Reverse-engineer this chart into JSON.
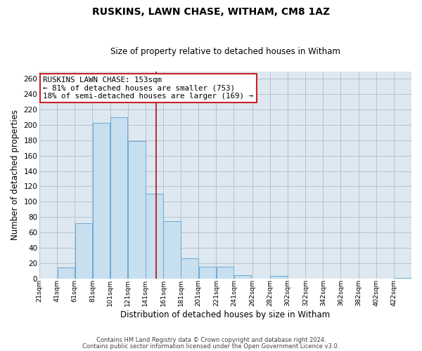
{
  "title": "RUSKINS, LAWN CHASE, WITHAM, CM8 1AZ",
  "subtitle": "Size of property relative to detached houses in Witham",
  "xlabel": "Distribution of detached houses by size in Witham",
  "ylabel": "Number of detached properties",
  "bar_color": "#c8dff0",
  "bar_edge_color": "#6aaad4",
  "background_color": "#ffffff",
  "plot_bg_color": "#dde8f0",
  "grid_color": "#b0bec8",
  "annotation_box_color": "#cc2222",
  "annotation_line_color": "#aa1111",
  "annotation_text_line1": "RUSKINS LAWN CHASE: 153sqm",
  "annotation_text_line2": "← 81% of detached houses are smaller (753)",
  "annotation_text_line3": "18% of semi-detached houses are larger (169) →",
  "property_size": 153,
  "bin_starts": [
    21,
    41,
    61,
    81,
    101,
    121,
    141,
    161,
    181,
    201,
    221,
    241,
    262,
    282,
    302,
    322,
    342,
    362,
    382,
    402,
    422
  ],
  "bin_width": 20,
  "values": [
    0,
    14,
    72,
    203,
    210,
    179,
    110,
    75,
    26,
    15,
    15,
    4,
    0,
    3,
    0,
    0,
    0,
    0,
    0,
    0,
    1
  ],
  "ylim": [
    0,
    270
  ],
  "yticks": [
    0,
    20,
    40,
    60,
    80,
    100,
    120,
    140,
    160,
    180,
    200,
    220,
    240,
    260
  ],
  "xlim_left": 21,
  "xlim_right": 442,
  "footer_line1": "Contains HM Land Registry data © Crown copyright and database right 2024.",
  "footer_line2": "Contains public sector information licensed under the Open Government Licence v3.0."
}
